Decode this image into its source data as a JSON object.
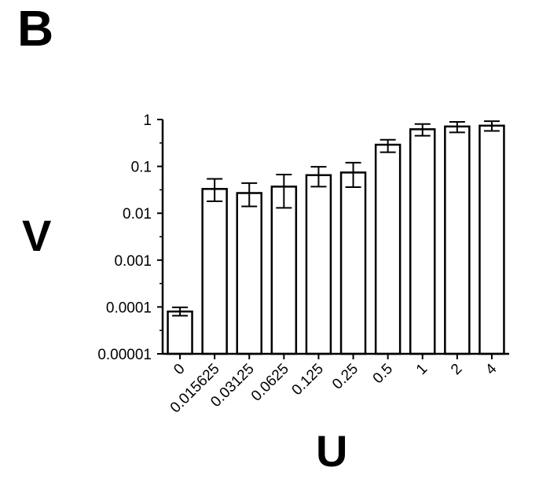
{
  "panel_label": "B",
  "chart_data": {
    "type": "bar",
    "xlabel": "U",
    "ylabel": "V",
    "yscale": "log",
    "ylim": [
      1e-05,
      1
    ],
    "yticks": [
      "1",
      "0.1",
      "0.01",
      "0.001",
      "0.0001",
      "0.00001"
    ],
    "ytick_values": [
      1,
      0.1,
      0.01,
      0.001,
      0.0001,
      1e-05
    ],
    "categories": [
      "0",
      "0.015625",
      "0.03125",
      "0.0625",
      "0.125",
      "0.25",
      "0.5",
      "1",
      "2",
      "4"
    ],
    "values": [
      8e-05,
      0.033,
      0.027,
      0.037,
      0.065,
      0.074,
      0.29,
      0.62,
      0.71,
      0.74
    ],
    "error_low": [
      6.5e-05,
      0.018,
      0.014,
      0.013,
      0.037,
      0.036,
      0.2,
      0.45,
      0.53,
      0.57
    ],
    "error_high": [
      9.8e-05,
      0.054,
      0.044,
      0.067,
      0.098,
      0.12,
      0.37,
      0.8,
      0.89,
      0.92
    ],
    "grid": false,
    "legend": "none"
  }
}
